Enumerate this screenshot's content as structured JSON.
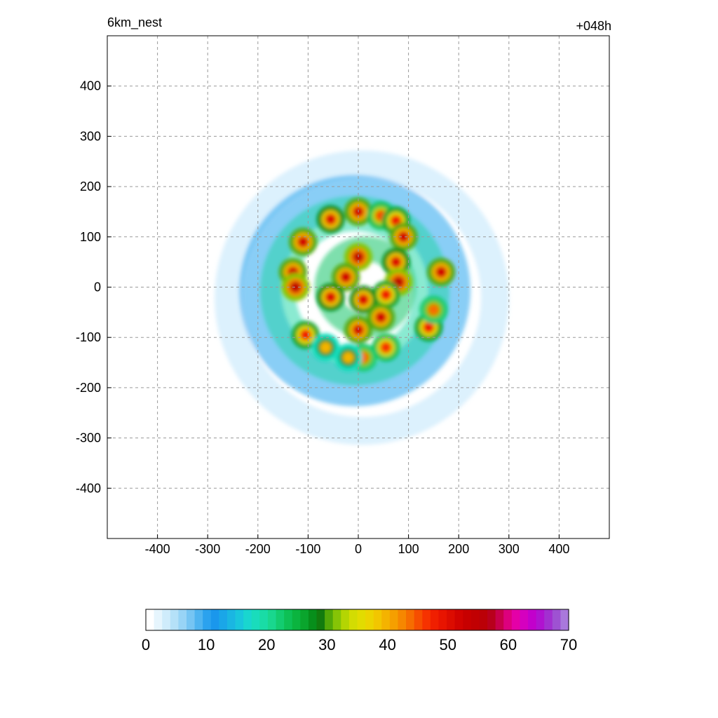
{
  "titles": {
    "left": "6km_nest",
    "right": "+048h"
  },
  "chart_data": {
    "type": "heatmap",
    "title": "6km_nest",
    "subtitle": "+048h",
    "xlabel": "",
    "ylabel": "",
    "xlim": [
      -500,
      500
    ],
    "ylim": [
      -500,
      500
    ],
    "x_ticks": [
      -400,
      -300,
      -200,
      -100,
      0,
      100,
      200,
      300,
      400
    ],
    "y_ticks": [
      -400,
      -300,
      -200,
      -100,
      0,
      100,
      200,
      300,
      400
    ],
    "x_tick_labels": [
      "-400",
      "-300",
      "-200",
      "-100",
      "0",
      "100",
      "200",
      "300",
      "400"
    ],
    "y_tick_labels": [
      "-400",
      "-300",
      "-200",
      "-100",
      "0",
      "100",
      "200",
      "300",
      "400"
    ],
    "grid": true,
    "colorbar": {
      "min": 0,
      "max": 70,
      "ticks": [
        0,
        10,
        20,
        30,
        40,
        50,
        60,
        70
      ],
      "tick_labels": [
        "0",
        "10",
        "20",
        "30",
        "40",
        "50",
        "60",
        "70"
      ],
      "colors": [
        "#ffffff",
        "#e6f5fd",
        "#cfecfb",
        "#b5e1f8",
        "#98d4f6",
        "#76c5f3",
        "#4fb4f0",
        "#2ba2ee",
        "#1a97ec",
        "#1aa6e8",
        "#1ab6e2",
        "#19c6dc",
        "#19d6cf",
        "#19dcbc",
        "#19dca6",
        "#19d78e",
        "#13cc70",
        "#0ec055",
        "#0bb43f",
        "#0aa52d",
        "#078f1b",
        "#127b0e",
        "#52a808",
        "#86c406",
        "#b4d503",
        "#d3dc02",
        "#e2dc00",
        "#ecd400",
        "#f2c600",
        "#f4b300",
        "#f59f00",
        "#f68700",
        "#f66d00",
        "#f64e00",
        "#f63200",
        "#f01f00",
        "#e81400",
        "#dc0c00",
        "#d10300",
        "#c70000",
        "#c10002",
        "#bb0007",
        "#b8001c",
        "#c8004b",
        "#dd007e",
        "#e400a7",
        "#d500bf",
        "#c200cc",
        "#b012d0",
        "#a230d0",
        "#9e52d2",
        "#a978dc"
      ]
    },
    "series": [
      {
        "values": [
          {
            "x": -110,
            "y": 90,
            "v": 52
          },
          {
            "x": -55,
            "y": 135,
            "v": 50
          },
          {
            "x": 0,
            "y": 150,
            "v": 52
          },
          {
            "x": 45,
            "y": 142,
            "v": 45
          },
          {
            "x": 75,
            "y": 132,
            "v": 48
          },
          {
            "x": 90,
            "y": 100,
            "v": 52
          },
          {
            "x": 165,
            "y": 30,
            "v": 52
          },
          {
            "x": 75,
            "y": 50,
            "v": 50
          },
          {
            "x": 80,
            "y": 10,
            "v": 54
          },
          {
            "x": 55,
            "y": -15,
            "v": 48
          },
          {
            "x": 0,
            "y": 60,
            "v": 54
          },
          {
            "x": -25,
            "y": 20,
            "v": 52
          },
          {
            "x": 10,
            "y": -25,
            "v": 50
          },
          {
            "x": -55,
            "y": -20,
            "v": 50
          },
          {
            "x": -130,
            "y": 30,
            "v": 52
          },
          {
            "x": -125,
            "y": 0,
            "v": 54
          },
          {
            "x": -105,
            "y": -95,
            "v": 48
          },
          {
            "x": -65,
            "y": -120,
            "v": 40
          },
          {
            "x": 0,
            "y": -85,
            "v": 52
          },
          {
            "x": 45,
            "y": -60,
            "v": 52
          },
          {
            "x": 140,
            "y": -80,
            "v": 48
          },
          {
            "x": 150,
            "y": -45,
            "v": 44
          },
          {
            "x": 55,
            "y": -120,
            "v": 46
          },
          {
            "x": 10,
            "y": -140,
            "v": 44
          },
          {
            "x": -20,
            "y": -140,
            "v": 40
          }
        ]
      }
    ]
  }
}
